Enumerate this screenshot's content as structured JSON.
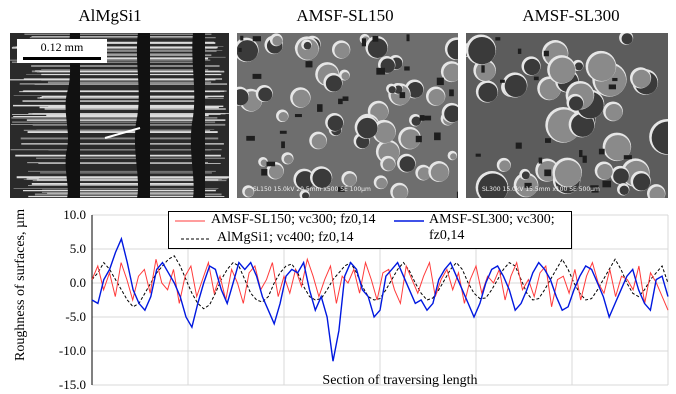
{
  "figure": {
    "panels": [
      {
        "title": "AlMgSi1",
        "scale_label": "0.12 mm"
      },
      {
        "title": "AMSF-SL150",
        "sem_caption": "SL150 15.0kV 20.5mm x500 SE        100µm"
      },
      {
        "title": "AMSF-SL300",
        "sem_caption": "SL300 15.0kV 15.5mm x100 SE        500µm"
      }
    ]
  },
  "chart_data": {
    "type": "line",
    "ylabel": "Roughness of surfaces, µm",
    "xlabel": "Section of traversing length",
    "ylim": [
      -15,
      10
    ],
    "yticks": [
      "10.0",
      "5.0",
      "0.0",
      "-5.0",
      "-10.0",
      "-15.0"
    ],
    "grid": true,
    "legend_position": "top",
    "series": [
      {
        "name": "AMSF-SL150; vc300; fz0,14",
        "color": "#ff3b3b",
        "values": [
          0.5,
          2.5,
          -1,
          1.5,
          -2,
          3,
          0.5,
          -2.5,
          1,
          2,
          -1.5,
          3.5,
          0,
          -1,
          2,
          -3,
          1,
          2.5,
          -2,
          0.5,
          3,
          -1.5,
          1,
          -2.5,
          2,
          0,
          -3,
          1.5,
          2.5,
          -1,
          0.5,
          3,
          -2,
          1,
          -1.5,
          2,
          -0.5,
          3.5,
          1,
          -2,
          0.5,
          2.5,
          -3,
          1,
          0,
          2,
          -1.5,
          3,
          0.5,
          -2.5,
          1.5,
          2,
          -1,
          -3,
          2.5,
          0.5,
          -1.5,
          1,
          3,
          -2,
          0.5,
          2,
          -1,
          1.5,
          -3,
          0.5,
          2.5,
          -1.5,
          1,
          0,
          2,
          -2.5,
          1,
          3,
          -1,
          0.5,
          -2,
          1.5,
          2.5,
          -3.5,
          0.5,
          1,
          -1.5,
          2,
          -2.5,
          1,
          3,
          0,
          -1.5,
          2,
          -2,
          1,
          0.5,
          -1,
          2.5,
          -3,
          1.5,
          0,
          -2,
          -4
        ]
      },
      {
        "name": "AMSF-SL300; vc300; fz0,14",
        "color": "#0018e0",
        "values": [
          -2.5,
          -3,
          0.5,
          2,
          4.5,
          6.5,
          3,
          -1,
          -3,
          -4,
          -2,
          2,
          3,
          1.5,
          0,
          -2,
          -5,
          -6.5,
          -3,
          0,
          2.5,
          2,
          -1,
          -3,
          0,
          3,
          2,
          3,
          1,
          -2,
          -4,
          -6,
          -3,
          1,
          2,
          1.5,
          3,
          -1,
          -4,
          -2,
          -5,
          -11.5,
          -7,
          1,
          3,
          2,
          -1,
          -2,
          -5,
          -4,
          1,
          2,
          3,
          1,
          -1,
          -3,
          -2.5,
          -4,
          -3,
          0.5,
          2,
          3,
          1,
          -1,
          -3,
          -5,
          -3,
          0,
          2,
          2.5,
          1,
          -1,
          -4,
          -3,
          -1,
          1.5,
          3,
          2,
          0.5,
          -2,
          -4,
          -3.5,
          -1,
          1,
          2.5,
          2,
          0,
          -2,
          -5,
          -3,
          -1,
          1,
          2,
          -1,
          -3,
          -4,
          0.5,
          1,
          -2
        ]
      },
      {
        "name": "AlMgSi1; vc400; fz0,14",
        "color": "#000000",
        "dashed": true,
        "values": [
          0.5,
          1.5,
          3,
          2,
          0.5,
          -1,
          -2.5,
          -3.5,
          -3,
          -1.5,
          0,
          1.5,
          2.5,
          3.5,
          4,
          2.5,
          0.5,
          -1.5,
          -3,
          -3.8,
          -3.2,
          -1.5,
          0.5,
          2,
          3,
          2.5,
          0.5,
          -1.5,
          -2.5,
          -2.8,
          -2,
          0,
          1.5,
          2.5,
          2.8,
          1.5,
          -0.5,
          -2,
          -2.5,
          -2.3,
          -1,
          0.5,
          1.5,
          2.5,
          3,
          1.5,
          -0.5,
          -2,
          -2.5,
          -2.3,
          -1,
          0.5,
          2,
          3,
          1.8,
          0,
          -1.5,
          -2.5,
          -2.2,
          -1,
          0.5,
          2,
          3,
          2,
          0,
          -1.5,
          -2.3,
          -2.2,
          -1,
          0.5,
          2,
          3,
          2.5,
          0.5,
          -1.5,
          -2.5,
          -2.3,
          -1,
          0.5,
          2,
          3.5,
          2,
          0,
          -1.5,
          -2.5,
          -2.3,
          -1,
          0.5,
          2,
          3.5,
          2,
          0,
          -1.5,
          -2,
          -1,
          0.5,
          1.5,
          2.5,
          0
        ]
      }
    ]
  }
}
